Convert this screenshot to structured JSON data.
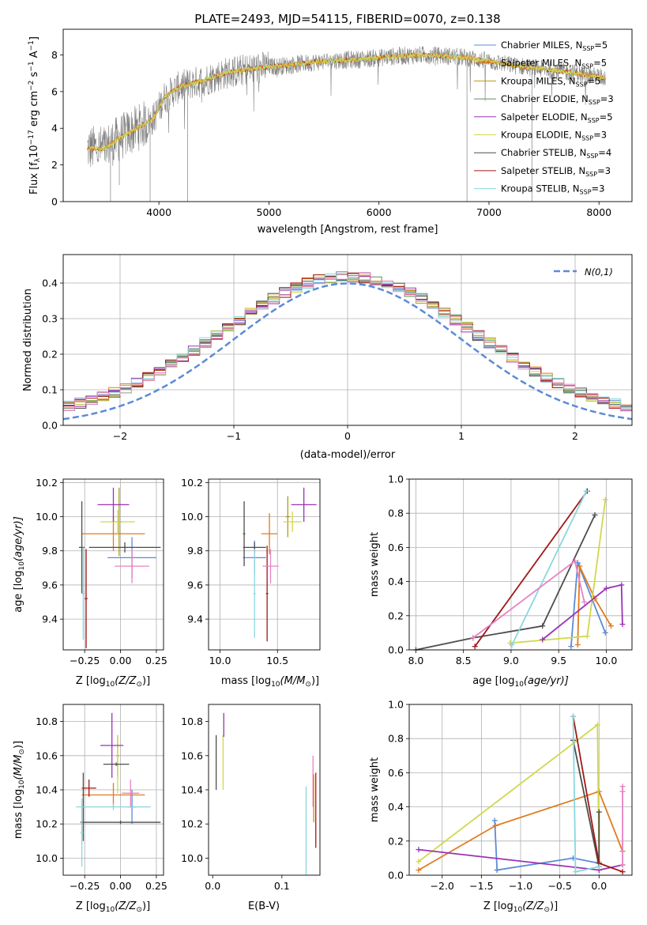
{
  "colors": [
    "#5b8bd8",
    "#e07b1f",
    "#b59a18",
    "#5f8f5f",
    "#9a33b5",
    "#d0d84a",
    "#4d4d4d",
    "#a01818",
    "#8ad7de",
    "#e882c2"
  ],
  "chart_data": [
    {
      "id": "spectrum",
      "type": "line",
      "title": "PLATE=2493, MJD=54115, FIBERID=0070, z=0.138",
      "xlabel": "wavelength [Angstrom, rest frame]",
      "ylabel_parts": [
        "Flux [f",
        "λ",
        "10",
        "−17",
        " erg cm",
        "−2",
        " s",
        "−1",
        " A",
        "−1",
        "]"
      ],
      "xlim": [
        3130,
        8300
      ],
      "ylim": [
        0,
        9.4
      ],
      "xticks": [
        4000,
        5000,
        6000,
        7000,
        8000
      ],
      "yticks": [
        0,
        2,
        4,
        6,
        8
      ],
      "grid": false,
      "legend_position": "right",
      "continuum": {
        "x": [
          3350,
          3500,
          3650,
          3800,
          3950,
          4050,
          4200,
          4400,
          4600,
          4800,
          5000,
          5200,
          5400,
          5600,
          5800,
          6000,
          6200,
          6400,
          6600,
          6800,
          7000,
          7200,
          7400,
          7600,
          7800,
          8000,
          8050
        ],
        "y": [
          2.9,
          2.9,
          3.5,
          4.0,
          4.5,
          5.7,
          6.3,
          6.6,
          7.0,
          7.2,
          7.35,
          7.45,
          7.6,
          7.7,
          7.75,
          7.85,
          7.95,
          8.0,
          7.95,
          7.85,
          7.65,
          7.45,
          7.3,
          7.15,
          7.0,
          6.8,
          6.75
        ]
      },
      "series": [
        {
          "name": "Chabrier MILES, N",
          "sub": "SSP",
          "suffix": "=5"
        },
        {
          "name": "Salpeter MILES, N",
          "sub": "SSP",
          "suffix": "=5"
        },
        {
          "name": "Kroupa MILES, N",
          "sub": "SSP",
          "suffix": "=5"
        },
        {
          "name": "Chabrier ELODIE, N",
          "sub": "SSP",
          "suffix": "=3"
        },
        {
          "name": "Salpeter ELODIE, N",
          "sub": "SSP",
          "suffix": "=5"
        },
        {
          "name": "Kroupa ELODIE, N",
          "sub": "SSP",
          "suffix": "=3"
        },
        {
          "name": "Chabrier STELIB, N",
          "sub": "SSP",
          "suffix": "=4"
        },
        {
          "name": "Salpeter STELIB, N",
          "sub": "SSP",
          "suffix": "=3"
        },
        {
          "name": "Kroupa STELIB, N",
          "sub": "SSP",
          "suffix": "=3"
        }
      ]
    },
    {
      "id": "residuals",
      "type": "histogram",
      "xlabel": "(data-model)/error",
      "ylabel": "Normed distribution",
      "xlim": [
        -2.5,
        2.5
      ],
      "ylim": [
        0,
        0.48
      ],
      "xticks": [
        -2,
        -1,
        0,
        1,
        2
      ],
      "yticks": [
        0.0,
        0.1,
        0.2,
        0.3,
        0.4
      ],
      "grid": true,
      "legend_position": "top-right",
      "legend_label": "N(0,1)",
      "bin_width": 0.1,
      "reference_curve": "normal(0,1)"
    },
    {
      "id": "age-vs-Z",
      "type": "errorbar",
      "xlabel_pre": "Z [log",
      "xlabel_sub": "10",
      "xlabel_post": "(Z/Z",
      "xlabel_end": ")]",
      "ylabel_pre": "age  [log",
      "ylabel_sub": "10",
      "ylabel_post": "(age/yr)]",
      "xlim": [
        -0.4,
        0.3
      ],
      "ylim": [
        9.22,
        10.22
      ],
      "xticks": [
        -0.25,
        0.0,
        0.25
      ],
      "xticklabels": [
        "−0.25",
        "0.00",
        "0.25"
      ],
      "yticks": [
        9.4,
        9.6,
        9.8,
        10.0,
        10.2
      ],
      "grid": true,
      "points": [
        {
          "x": 0.08,
          "y": 9.76,
          "xerr": 0.17,
          "yerr": 0.12,
          "color": 0
        },
        {
          "x": -0.05,
          "y": 9.9,
          "xerr": 0.22,
          "yerr": 0.1,
          "color": 1
        },
        {
          "x": -0.01,
          "y": 9.97,
          "xerr": 0.02,
          "yerr": 0.2,
          "color": 2
        },
        {
          "x": -0.02,
          "y": 9.97,
          "xerr": 0.12,
          "yerr": 0.07,
          "color": 5
        },
        {
          "x": -0.05,
          "y": 10.07,
          "xerr": 0.11,
          "yerr": 0.1,
          "color": 4
        },
        {
          "x": -0.27,
          "y": 9.82,
          "xerr": 0.02,
          "yerr": 0.27,
          "color": 6
        },
        {
          "x": 0.03,
          "y": 9.82,
          "xerr": 0.25,
          "yerr": 0.03,
          "color": 6
        },
        {
          "x": -0.24,
          "y": 9.52,
          "xerr": 0.01,
          "yerr": 0.29,
          "color": 7
        },
        {
          "x": -0.26,
          "y": 9.55,
          "xerr": 0.01,
          "yerr": 0.27,
          "color": 8
        },
        {
          "x": 0.08,
          "y": 9.71,
          "xerr": 0.12,
          "yerr": 0.1,
          "color": 9
        }
      ]
    },
    {
      "id": "age-vs-mass",
      "type": "errorbar",
      "xlabel_pre": "mass [log",
      "xlabel_sub": "10",
      "xlabel_post": "(M/M",
      "xlabel_end": ")]",
      "xlim": [
        9.9,
        10.87
      ],
      "ylim": [
        9.22,
        10.22
      ],
      "xticks": [
        10.0,
        10.5
      ],
      "xticklabels": [
        "10.0",
        "10.5"
      ],
      "yticks": [
        9.4,
        9.6,
        9.8,
        10.0,
        10.2
      ],
      "grid": true,
      "points": [
        {
          "x": 10.3,
          "y": 9.76,
          "xerr": 0.1,
          "yerr": 0.1,
          "color": 0
        },
        {
          "x": 10.43,
          "y": 9.9,
          "xerr": 0.07,
          "yerr": 0.12,
          "color": 1
        },
        {
          "x": 10.59,
          "y": 10.0,
          "xerr": 0.02,
          "yerr": 0.12,
          "color": 2
        },
        {
          "x": 10.63,
          "y": 9.97,
          "xerr": 0.08,
          "yerr": 0.06,
          "color": 5
        },
        {
          "x": 10.73,
          "y": 10.07,
          "xerr": 0.11,
          "yerr": 0.1,
          "color": 4
        },
        {
          "x": 10.3,
          "y": 9.82,
          "xerr": 0.1,
          "yerr": 0.03,
          "color": 6
        },
        {
          "x": 10.21,
          "y": 9.9,
          "xerr": 0.01,
          "yerr": 0.19,
          "color": 6
        },
        {
          "x": 10.41,
          "y": 9.55,
          "xerr": 0.01,
          "yerr": 0.28,
          "color": 7
        },
        {
          "x": 10.3,
          "y": 9.55,
          "xerr": 0.01,
          "yerr": 0.26,
          "color": 8
        },
        {
          "x": 10.44,
          "y": 9.71,
          "xerr": 0.07,
          "yerr": 0.1,
          "color": 9
        }
      ]
    },
    {
      "id": "weight-vs-age",
      "type": "line",
      "xlabel_pre": "age  [log",
      "xlabel_sub": "10",
      "xlabel_post": "(age/yr)]",
      "ylabel": "mass weight",
      "xlim": [
        7.93,
        10.27
      ],
      "ylim": [
        0,
        1.0
      ],
      "xticks": [
        8.0,
        8.5,
        9.0,
        9.5,
        10.0
      ],
      "xticklabels": [
        "8.0",
        "8.5",
        "9.0",
        "9.5",
        "10.0"
      ],
      "yticks": [
        0.0,
        0.2,
        0.4,
        0.6,
        0.8,
        1.0
      ],
      "yticklabels": [
        "0.0",
        "0.2",
        "0.4",
        "0.6",
        "0.8",
        "1.0"
      ],
      "grid": true,
      "series": [
        {
          "color": 0,
          "x": [
            9.63,
            9.7,
            9.99
          ],
          "y": [
            0.02,
            0.51,
            0.1
          ]
        },
        {
          "color": 1,
          "x": [
            9.7,
            9.72,
            9.88,
            10.05
          ],
          "y": [
            0.03,
            0.49,
            0.3,
            0.14
          ]
        },
        {
          "color": 5,
          "x": [
            8.99,
            9.8,
            9.99
          ],
          "y": [
            0.04,
            0.08,
            0.88
          ]
        },
        {
          "color": 4,
          "x": [
            9.33,
            10.0,
            10.16,
            10.17
          ],
          "y": [
            0.06,
            0.36,
            0.38,
            0.15
          ]
        },
        {
          "color": 6,
          "x": [
            8.0,
            8.6,
            9.33,
            9.88
          ],
          "y": [
            0.0,
            0.07,
            0.14,
            0.79
          ]
        },
        {
          "color": 7,
          "x": [
            8.62,
            9.8
          ],
          "y": [
            0.02,
            0.93
          ]
        },
        {
          "color": 8,
          "x": [
            9.01,
            9.79
          ],
          "y": [
            0.03,
            0.93
          ]
        },
        {
          "color": 9,
          "x": [
            8.6,
            9.67,
            9.77
          ],
          "y": [
            0.07,
            0.52,
            0.28
          ]
        }
      ]
    },
    {
      "id": "mass-vs-Z",
      "type": "errorbar",
      "xlabel_pre": "Z [log",
      "xlabel_sub": "10",
      "xlabel_post": "(Z/Z",
      "xlabel_end": ")]",
      "ylabel_pre": "mass [log",
      "ylabel_sub": "10",
      "ylabel_post": "(M/M",
      "ylabel_end": ")]",
      "xlim": [
        -0.4,
        0.3
      ],
      "ylim": [
        9.9,
        10.9
      ],
      "xticks": [
        -0.25,
        0.0,
        0.25
      ],
      "xticklabels": [
        "−0.25",
        "0.00",
        "0.25"
      ],
      "yticks": [
        10.0,
        10.2,
        10.4,
        10.6,
        10.8
      ],
      "yticklabels": [
        "10.0",
        "10.2",
        "10.4",
        "10.6",
        "10.8"
      ],
      "grid": true,
      "points": [
        {
          "x": 0.08,
          "y": 10.3,
          "xerr": 0.03,
          "yerr": 0.1,
          "color": 0
        },
        {
          "x": -0.05,
          "y": 10.37,
          "xerr": 0.22,
          "yerr": 0.07,
          "color": 1
        },
        {
          "x": -0.02,
          "y": 10.6,
          "xerr": 0.01,
          "yerr": 0.12,
          "color": 2
        },
        {
          "x": -0.02,
          "y": 10.55,
          "xerr": 0.01,
          "yerr": 0.17,
          "color": 5
        },
        {
          "x": -0.06,
          "y": 10.66,
          "xerr": 0.08,
          "yerr": 0.19,
          "color": 4
        },
        {
          "x": -0.03,
          "y": 10.55,
          "xerr": 0.09,
          "yerr": 0.01,
          "color": 6
        },
        {
          "x": 0.0,
          "y": 10.21,
          "xerr": 0.28,
          "yerr": 0.01,
          "color": 6
        },
        {
          "x": -0.26,
          "y": 10.3,
          "xerr": 0.01,
          "yerr": 0.2,
          "color": 6
        },
        {
          "x": -0.22,
          "y": 10.41,
          "xerr": 0.05,
          "yerr": 0.05,
          "color": 7
        },
        {
          "x": -0.05,
          "y": 10.3,
          "xerr": 0.26,
          "yerr": 0.02,
          "color": 8
        },
        {
          "x": -0.27,
          "y": 10.15,
          "xerr": 0.01,
          "yerr": 0.2,
          "color": 8
        },
        {
          "x": 0.07,
          "y": 10.38,
          "xerr": 0.06,
          "yerr": 0.08,
          "color": 9
        }
      ]
    },
    {
      "id": "mass-vs-EBV",
      "type": "errorbar",
      "xlabel": "E(B-V)",
      "xlim": [
        -0.006,
        0.155
      ],
      "ylim": [
        9.9,
        10.9
      ],
      "xticks": [
        0.0,
        0.1
      ],
      "xticklabels": [
        "0.0",
        "0.1"
      ],
      "yticks": [
        10.0,
        10.2,
        10.4,
        10.6,
        10.8
      ],
      "yticklabels": [
        "10.0",
        "10.2",
        "10.4",
        "10.6",
        "10.8"
      ],
      "grid": false,
      "points": [
        {
          "x": 0.005,
          "y": 10.56,
          "xerr": 0.0,
          "yerr": 0.16,
          "color": 6
        },
        {
          "x": 0.015,
          "y": 10.56,
          "xerr": 0.0,
          "yerr": 0.16,
          "color": 5
        },
        {
          "x": 0.016,
          "y": 10.78,
          "xerr": 0.0,
          "yerr": 0.07,
          "color": 4
        },
        {
          "x": 0.135,
          "y": 10.14,
          "xerr": 0.0,
          "yerr": 0.28,
          "color": 8
        },
        {
          "x": 0.145,
          "y": 10.45,
          "xerr": 0.0,
          "yerr": 0.15,
          "color": 9
        },
        {
          "x": 0.146,
          "y": 10.35,
          "xerr": 0.0,
          "yerr": 0.14,
          "color": 1
        },
        {
          "x": 0.149,
          "y": 10.28,
          "xerr": 0.0,
          "yerr": 0.22,
          "color": 7
        }
      ]
    },
    {
      "id": "weight-vs-Z",
      "type": "line",
      "xlabel_pre": "Z [log",
      "xlabel_sub": "10",
      "xlabel_post": "(Z/Z",
      "xlabel_end": ")]",
      "ylabel": "mass weight",
      "xlim": [
        -2.42,
        0.42
      ],
      "ylim": [
        0,
        1.0
      ],
      "xticks": [
        -2.0,
        -1.5,
        -1.0,
        -0.5,
        0.0
      ],
      "xticklabels": [
        "−2.0",
        "−1.5",
        "−1.0",
        "−0.5",
        "0.0"
      ],
      "yticks": [
        0.0,
        0.2,
        0.4,
        0.6,
        0.8,
        1.0
      ],
      "yticklabels": [
        "0.0",
        "0.2",
        "0.4",
        "0.6",
        "0.8",
        "1.0"
      ],
      "grid": true,
      "series": [
        {
          "color": 0,
          "x": [
            -1.3,
            -0.33,
            0.0
          ],
          "y": [
            0.03,
            0.1,
            0.07
          ]
        },
        {
          "color": 0,
          "x": [
            -1.33,
            -1.3
          ],
          "y": [
            0.32,
            0.03
          ]
        },
        {
          "color": 1,
          "x": [
            -2.3,
            -1.32,
            0.0,
            0.3
          ],
          "y": [
            0.03,
            0.29,
            0.49,
            0.14
          ]
        },
        {
          "color": 5,
          "x": [
            -2.3,
            -0.02,
            0.0
          ],
          "y": [
            0.08,
            0.88,
            0.08
          ]
        },
        {
          "color": 4,
          "x": [
            -2.3,
            0.0,
            0.3
          ],
          "y": [
            0.15,
            0.03,
            0.06
          ]
        },
        {
          "color": 6,
          "x": [
            -0.33,
            0.0,
            0.0
          ],
          "y": [
            0.79,
            0.05,
            0.37
          ]
        },
        {
          "color": 7,
          "x": [
            -0.33,
            0.0,
            0.3
          ],
          "y": [
            0.93,
            0.07,
            0.02
          ]
        },
        {
          "color": 8,
          "x": [
            -0.33,
            -0.3,
            0.0
          ],
          "y": [
            0.93,
            0.02,
            0.05
          ]
        },
        {
          "color": 9,
          "x": [
            0.3,
            0.3,
            0.3
          ],
          "y": [
            0.52,
            0.06,
            0.49
          ]
        }
      ]
    }
  ]
}
